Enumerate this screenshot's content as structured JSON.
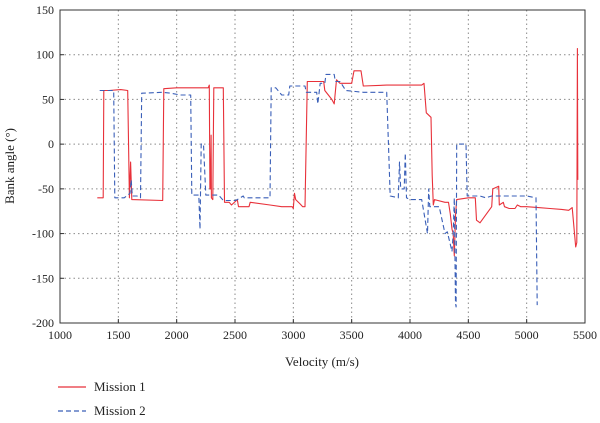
{
  "chart_data": {
    "type": "line",
    "xlabel": "Velocity (m/s)",
    "ylabel": "Bank angle (°)",
    "xlim": [
      1000,
      5500
    ],
    "ylim": [
      -200,
      150
    ],
    "xticks": [
      1000,
      1500,
      2000,
      2500,
      3000,
      3500,
      4000,
      4500,
      5000,
      5500
    ],
    "yticks": [
      -200,
      -150,
      -100,
      -50,
      0,
      50,
      100,
      150
    ],
    "grid": true,
    "legend_position": "bottom-left",
    "series": [
      {
        "name": "Mission 1",
        "color": "#e8313a",
        "style": "solid",
        "points": [
          [
            1320,
            -60
          ],
          [
            1370,
            -60
          ],
          [
            1375,
            60
          ],
          [
            1420,
            60
          ],
          [
            1520,
            61
          ],
          [
            1580,
            60
          ],
          [
            1595,
            -60
          ],
          [
            1605,
            -20
          ],
          [
            1615,
            -62
          ],
          [
            1880,
            -63
          ],
          [
            1890,
            62
          ],
          [
            2000,
            63
          ],
          [
            2100,
            63
          ],
          [
            2270,
            63
          ],
          [
            2280,
            66
          ],
          [
            2285,
            -50
          ],
          [
            2290,
            -50
          ],
          [
            2295,
            10
          ],
          [
            2298,
            -60
          ],
          [
            2310,
            -62
          ],
          [
            2318,
            63
          ],
          [
            2400,
            63
          ],
          [
            2410,
            -65
          ],
          [
            2450,
            -65
          ],
          [
            2470,
            -68
          ],
          [
            2520,
            -62
          ],
          [
            2530,
            -70
          ],
          [
            2620,
            -70
          ],
          [
            2630,
            -65
          ],
          [
            2800,
            -68
          ],
          [
            2900,
            -70
          ],
          [
            2990,
            -70
          ],
          [
            3000,
            -72
          ],
          [
            3010,
            -55
          ],
          [
            3020,
            -62
          ],
          [
            3060,
            -67
          ],
          [
            3080,
            -70
          ],
          [
            3100,
            -70
          ],
          [
            3120,
            70
          ],
          [
            3200,
            70
          ],
          [
            3260,
            70
          ],
          [
            3270,
            60
          ],
          [
            3330,
            50
          ],
          [
            3350,
            45
          ],
          [
            3370,
            72
          ],
          [
            3400,
            68
          ],
          [
            3500,
            68
          ],
          [
            3520,
            82
          ],
          [
            3580,
            82
          ],
          [
            3600,
            65
          ],
          [
            3800,
            66
          ],
          [
            3900,
            66
          ],
          [
            4000,
            66
          ],
          [
            4100,
            66
          ],
          [
            4120,
            68
          ],
          [
            4140,
            35
          ],
          [
            4180,
            30
          ],
          [
            4190,
            -35
          ],
          [
            4200,
            -68
          ],
          [
            4210,
            -62
          ],
          [
            4300,
            -65
          ],
          [
            4330,
            -65
          ],
          [
            4345,
            -78
          ],
          [
            4360,
            -95
          ],
          [
            4370,
            -100
          ],
          [
            4380,
            -125
          ],
          [
            4390,
            -80
          ],
          [
            4400,
            -62
          ],
          [
            4500,
            -60
          ],
          [
            4560,
            -60
          ],
          [
            4570,
            -85
          ],
          [
            4600,
            -88
          ],
          [
            4700,
            -70
          ],
          [
            4710,
            -50
          ],
          [
            4760,
            -47
          ],
          [
            4765,
            -68
          ],
          [
            4800,
            -65
          ],
          [
            4810,
            -70
          ],
          [
            4850,
            -72
          ],
          [
            4900,
            -72
          ],
          [
            4920,
            -68
          ],
          [
            4950,
            -70
          ],
          [
            5000,
            -70
          ],
          [
            5100,
            -71
          ],
          [
            5200,
            -72
          ],
          [
            5300,
            -73
          ],
          [
            5360,
            -74
          ],
          [
            5390,
            -71
          ],
          [
            5420,
            -115
          ],
          [
            5430,
            -110
          ],
          [
            5435,
            107
          ],
          [
            5438,
            -40
          ]
        ]
      },
      {
        "name": "Mission 2",
        "color": "#3a5fb8",
        "style": "dashed",
        "points": [
          [
            1340,
            60
          ],
          [
            1460,
            60
          ],
          [
            1470,
            -60
          ],
          [
            1550,
            -60
          ],
          [
            1600,
            -55
          ],
          [
            1610,
            -40
          ],
          [
            1620,
            -58
          ],
          [
            1660,
            -58
          ],
          [
            1690,
            -60
          ],
          [
            1700,
            57
          ],
          [
            1880,
            58
          ],
          [
            1950,
            57
          ],
          [
            2030,
            55
          ],
          [
            2120,
            55
          ],
          [
            2130,
            -57
          ],
          [
            2190,
            -57
          ],
          [
            2200,
            -95
          ],
          [
            2210,
            0
          ],
          [
            2230,
            0
          ],
          [
            2250,
            -57
          ],
          [
            2360,
            -57
          ],
          [
            2380,
            -60
          ],
          [
            2400,
            -63
          ],
          [
            2500,
            -63
          ],
          [
            2520,
            -62
          ],
          [
            2570,
            -58
          ],
          [
            2580,
            -60
          ],
          [
            2800,
            -60
          ],
          [
            2810,
            63
          ],
          [
            2850,
            63
          ],
          [
            2900,
            55
          ],
          [
            2960,
            55
          ],
          [
            2970,
            65
          ],
          [
            3100,
            65
          ],
          [
            3110,
            58
          ],
          [
            3200,
            58
          ],
          [
            3210,
            45
          ],
          [
            3230,
            68
          ],
          [
            3270,
            68
          ],
          [
            3280,
            78
          ],
          [
            3350,
            78
          ],
          [
            3360,
            70
          ],
          [
            3400,
            70
          ],
          [
            3450,
            60
          ],
          [
            3600,
            58
          ],
          [
            3800,
            58
          ],
          [
            3830,
            -58
          ],
          [
            3900,
            -60
          ],
          [
            3910,
            -20
          ],
          [
            3920,
            -50
          ],
          [
            3950,
            -50
          ],
          [
            3960,
            -10
          ],
          [
            3970,
            -60
          ],
          [
            4000,
            -62
          ],
          [
            4100,
            -62
          ],
          [
            4150,
            -100
          ],
          [
            4160,
            -50
          ],
          [
            4170,
            -70
          ],
          [
            4250,
            -70
          ],
          [
            4300,
            -100
          ],
          [
            4320,
            -98
          ],
          [
            4360,
            -120
          ],
          [
            4370,
            -100
          ],
          [
            4380,
            -60
          ],
          [
            4390,
            -178
          ],
          [
            4395,
            -182
          ],
          [
            4400,
            0
          ],
          [
            4480,
            0
          ],
          [
            4490,
            -58
          ],
          [
            4550,
            -58
          ],
          [
            4600,
            -58
          ],
          [
            4650,
            -60
          ],
          [
            4700,
            -58
          ],
          [
            5000,
            -58
          ],
          [
            5080,
            -60
          ],
          [
            5090,
            -180
          ]
        ]
      }
    ]
  }
}
